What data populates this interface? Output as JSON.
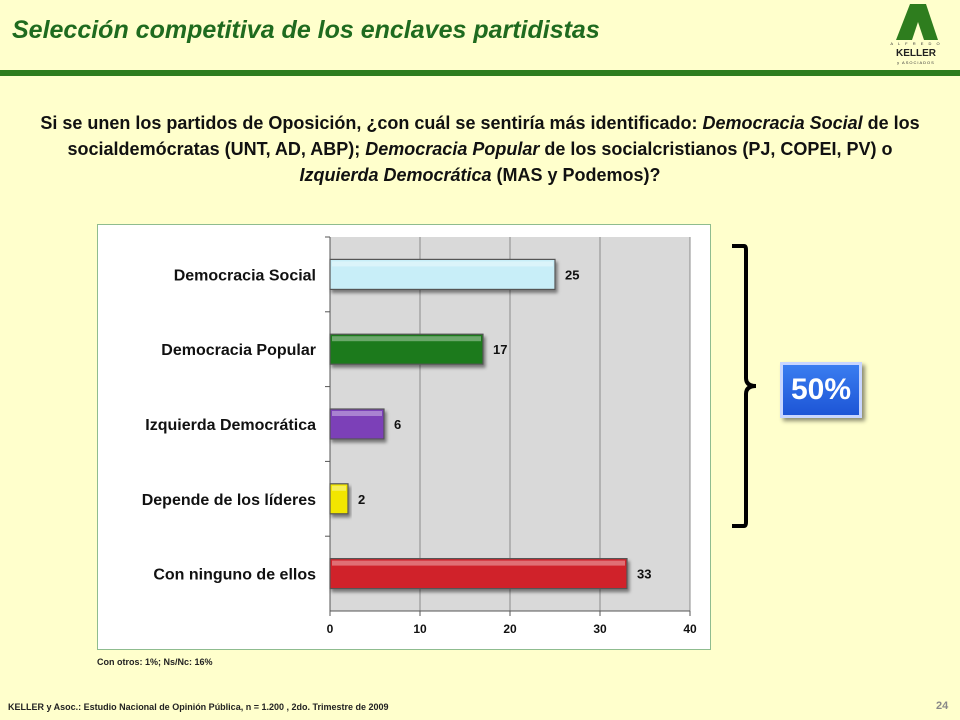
{
  "slide": {
    "title": "Selección competitiva de los enclaves partidistas",
    "question": "Si se unen los partidos de Oposición, ¿con cuál se sentiría más identificado: Democracia Social de los socialdemócratas (UNT, AD, ABP); Democracia Popular de los socialcristianos (PJ, COPEI, PV) o Izquierda Democrática (MAS y Podemos)?",
    "footnote": "Con otros: 1%; Ns/Nc: 16%",
    "badge": "50%",
    "source": "KELLER y Asoc.: Estudio Nacional de Opinión Pública, n = 1.200 , 2do. Trimestre de 2009",
    "page_number": "24"
  },
  "logo": {
    "top_text": "A L F R E D O",
    "name": "KELLER",
    "bottom_text": "y ASOCIADOS",
    "color": "#2e7d1e"
  },
  "colors": {
    "background": "#ffffcc",
    "title": "#1f6b1f",
    "rule": "#2e7d1e",
    "badge": "#2a6ae8"
  },
  "chart_data": {
    "type": "bar",
    "orientation": "horizontal",
    "categories": [
      "Democracia Social",
      "Democracia Popular",
      "Izquierda Democrática",
      "Depende de los líderes",
      "Con ninguno de ellos"
    ],
    "values": [
      25,
      17,
      6,
      2,
      33
    ],
    "colors": [
      "#c8eef8",
      "#1e7a1e",
      "#7b3fb8",
      "#f2e600",
      "#d0202a"
    ],
    "xlim": [
      0,
      40
    ],
    "xticks": [
      "0",
      "10",
      "20",
      "30",
      "40"
    ],
    "grid": true
  }
}
